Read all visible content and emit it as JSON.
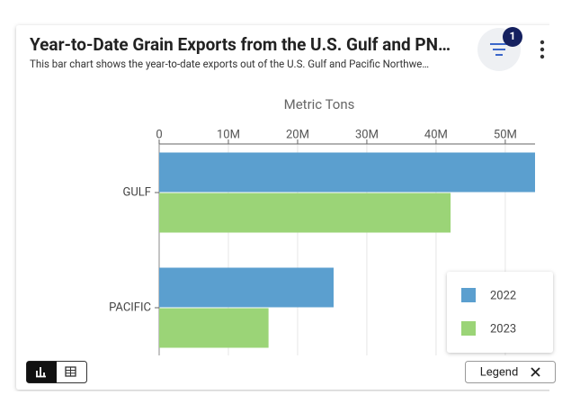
{
  "chart_data": {
    "type": "bar",
    "orientation": "horizontal",
    "title": "Year-to-Date Grain Exports from the U.S. Gulf and PN…",
    "subtitle": "This bar chart shows the year-to-date exports out of the U.S. Gulf and Pacific Northwe…",
    "x_label": "Metric Tons",
    "categories": [
      "GULF",
      "PACIFIC"
    ],
    "series": [
      {
        "name": "2022",
        "color": "#5b9fcf",
        "values": [
          54300000,
          25200000
        ]
      },
      {
        "name": "2023",
        "color": "#9bd477",
        "values": [
          42100000,
          15800000
        ]
      }
    ],
    "xlim": [
      0,
      54300000
    ],
    "xticks": [
      0,
      {
        "value": 10000000,
        "label": "10M"
      },
      {
        "value": 20000000,
        "label": "20M"
      },
      {
        "value": 30000000,
        "label": "30M"
      },
      {
        "value": 40000000,
        "label": "40M"
      },
      {
        "value": 50000000,
        "label": "50M"
      }
    ],
    "grid": true,
    "legend": "lower right"
  },
  "ui": {
    "filter_count": 1,
    "legend_button": "Legend"
  }
}
